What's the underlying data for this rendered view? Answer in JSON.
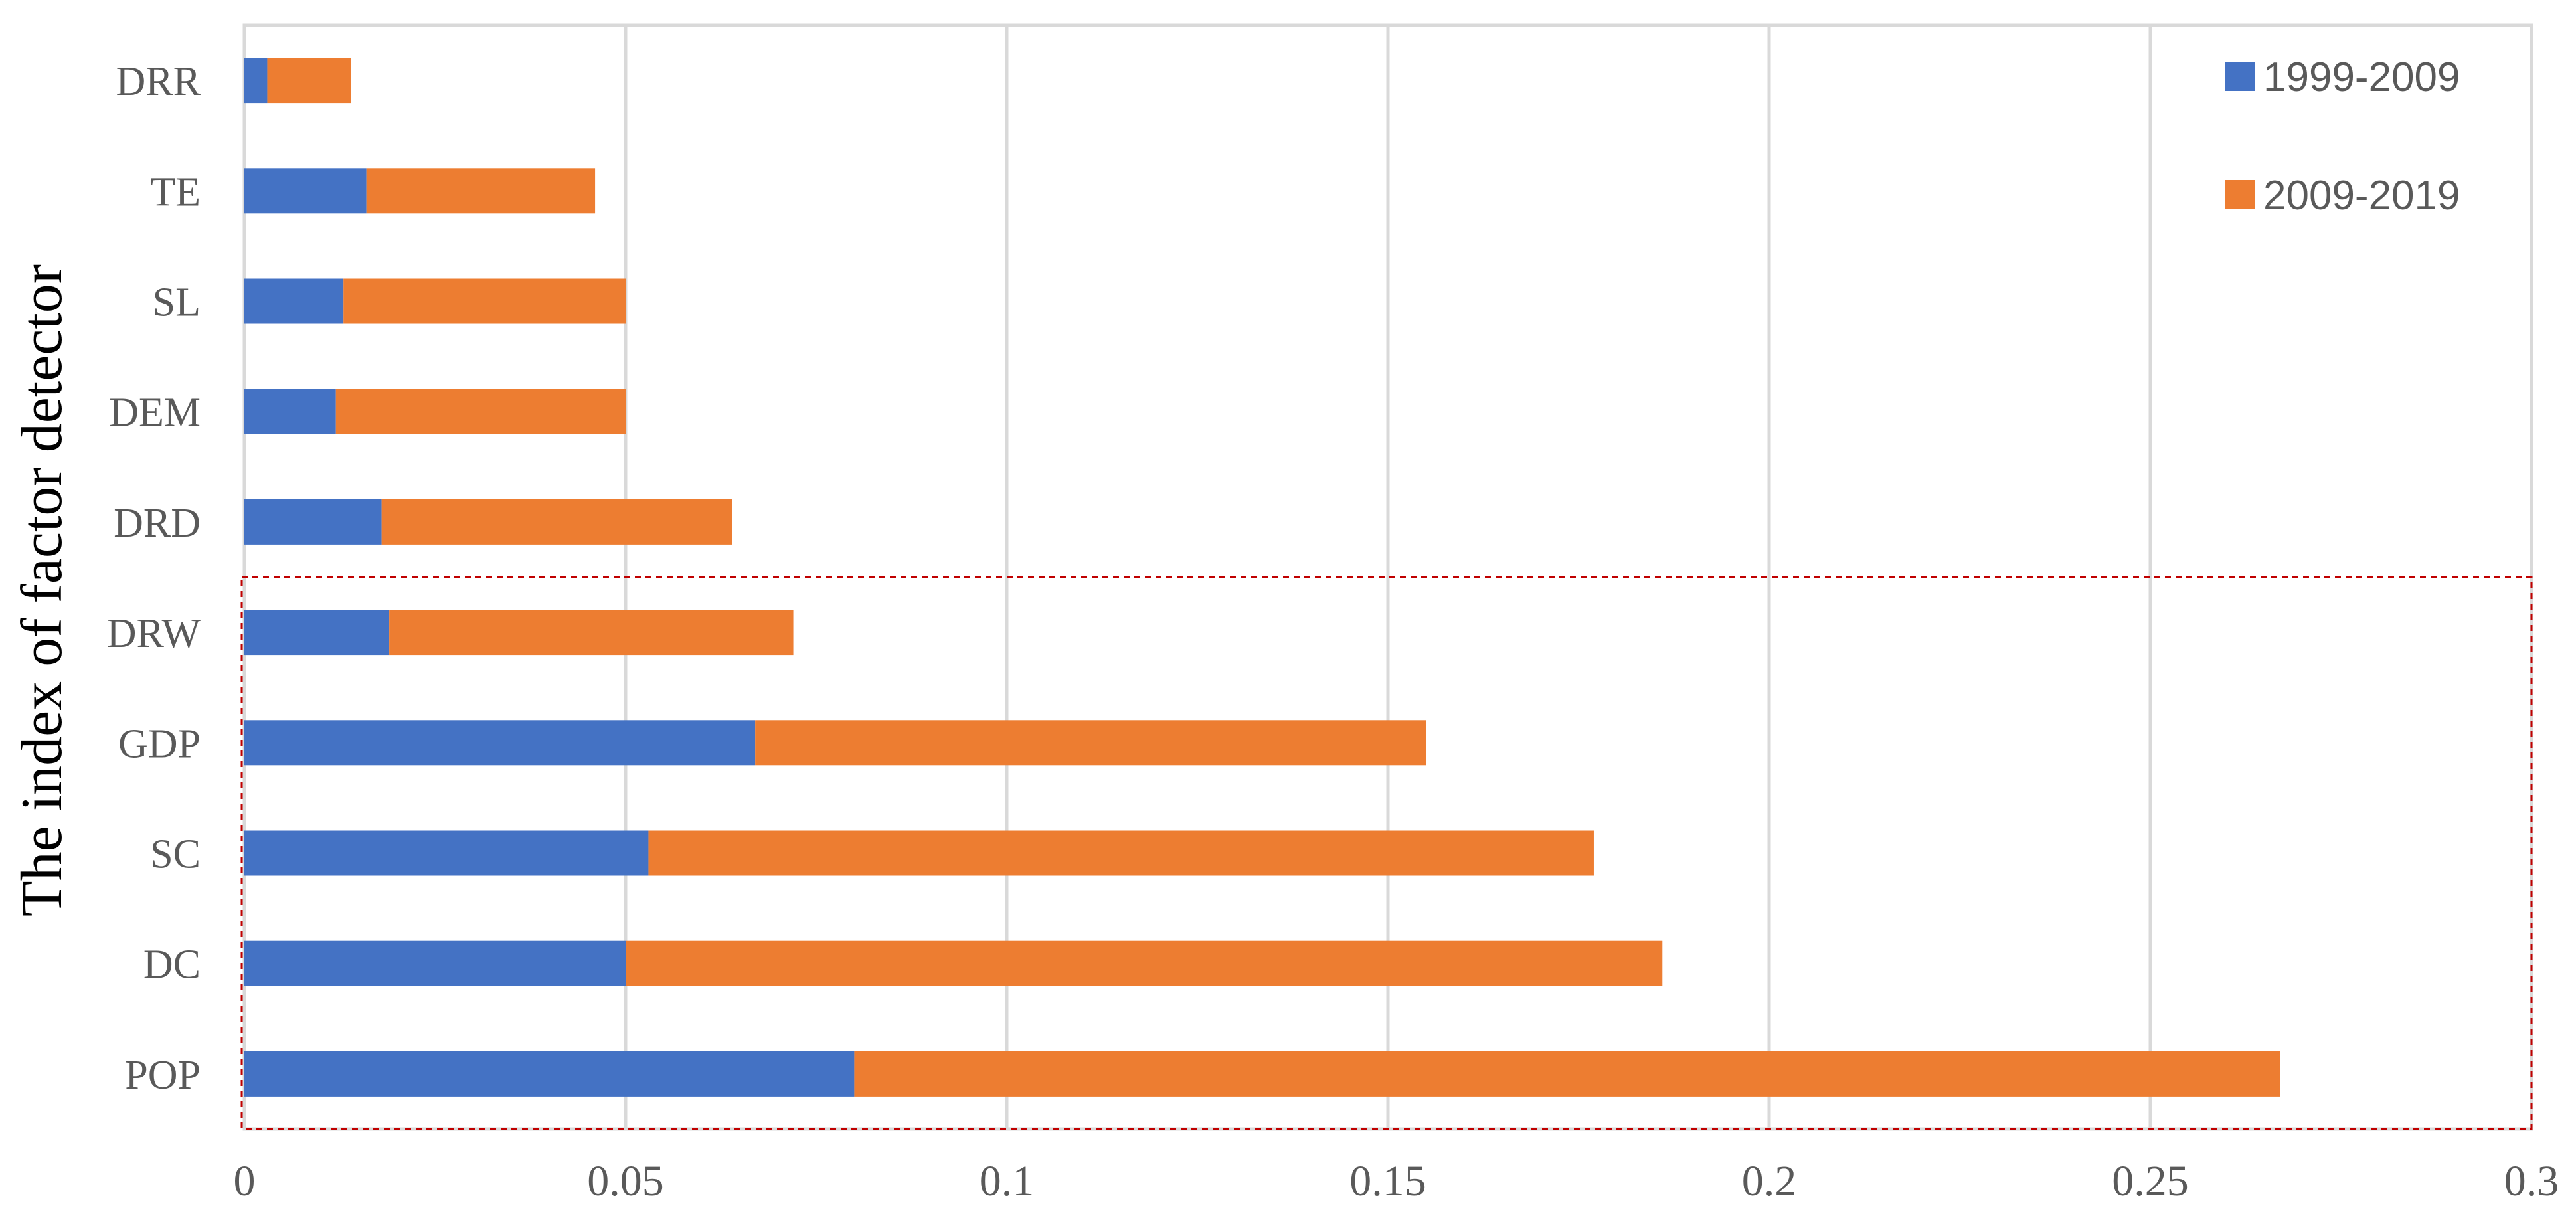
{
  "chart_data": {
    "type": "bar",
    "orientation": "horizontal",
    "stacked": true,
    "categories": [
      "POP",
      "DC",
      "SC",
      "GDP",
      "DRW",
      "DRD",
      "DEM",
      "SL",
      "TE",
      "DRR"
    ],
    "series": [
      {
        "name": "1999-2009",
        "values": [
          0.08,
          0.05,
          0.053,
          0.067,
          0.019,
          0.018,
          0.012,
          0.013,
          0.016,
          0.003
        ],
        "color": "#4472C4"
      },
      {
        "name": "2009-2019",
        "values": [
          0.187,
          0.136,
          0.124,
          0.088,
          0.053,
          0.046,
          0.038,
          0.037,
          0.03,
          0.011
        ],
        "color": "#ED7D31"
      }
    ],
    "title": "",
    "xlabel": "",
    "ylabel": "The index of factor detector",
    "xlim": [
      0,
      0.3
    ],
    "x_ticks": [
      "0",
      "0.05",
      "0.1",
      "0.15",
      "0.2",
      "0.25",
      "0.3"
    ],
    "grid": "vertical",
    "legend_position": "top-right",
    "highlight_box": {
      "from_category": "POP",
      "to_category": "DRW",
      "color": "#C00000",
      "style": "dashed"
    }
  }
}
